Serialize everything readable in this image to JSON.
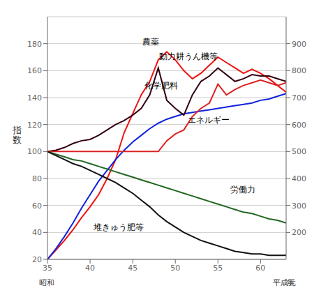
{
  "chart_data": {
    "type": "line",
    "x": [
      35,
      36,
      37,
      38,
      39,
      40,
      41,
      42,
      43,
      44,
      45,
      46,
      47,
      48,
      49,
      50,
      51,
      52,
      53,
      54,
      55,
      56,
      57,
      58,
      59,
      60,
      61,
      62,
      63
    ],
    "xlim": [
      35,
      63
    ],
    "xticks": [
      35,
      40,
      45,
      50,
      55,
      60
    ],
    "ylim": [
      20,
      200
    ],
    "yticks": [
      20,
      40,
      60,
      80,
      100,
      120,
      140,
      160,
      180
    ],
    "y2lim": [
      100,
      1000
    ],
    "y2ticks": [
      200,
      300,
      400,
      500,
      600,
      700,
      800,
      900
    ],
    "y_label": "指\n数",
    "grid": true,
    "series": [
      {
        "name": "農薬",
        "color": "#ee1111",
        "axis": "y2",
        "values": [
          100,
          135,
          170,
          210,
          255,
          295,
          340,
          400,
          470,
          570,
          640,
          710,
          760,
          840,
          870,
          840,
          800,
          770,
          790,
          820,
          850,
          830,
          810,
          790,
          805,
          790,
          770,
          745,
          720
        ]
      },
      {
        "name": "動力耕うん機等",
        "color": "#1122dd",
        "axis": "y2",
        "values": [
          100,
          140,
          185,
          235,
          290,
          340,
          390,
          430,
          470,
          505,
          535,
          560,
          585,
          605,
          620,
          630,
          640,
          645,
          650,
          655,
          660,
          665,
          670,
          675,
          680,
          690,
          695,
          705,
          715
        ]
      },
      {
        "name": "化学肥料",
        "color": "#330011",
        "axis": "y",
        "values": [
          100,
          101,
          103,
          106,
          108,
          109,
          112,
          116,
          120,
          123,
          127,
          132,
          142,
          162,
          138,
          132,
          127,
          142,
          152,
          156,
          162,
          157,
          152,
          154,
          157,
          156,
          156,
          154,
          152
        ]
      },
      {
        "name": "エネルギー",
        "color": "#dd2222",
        "axis": "y",
        "values": [
          100,
          100,
          100,
          100,
          100,
          100,
          100,
          100,
          100,
          100,
          100,
          100,
          100,
          100,
          108,
          113,
          116,
          126,
          132,
          136,
          150,
          142,
          146,
          149,
          151,
          153,
          151,
          149,
          151
        ]
      },
      {
        "name": "労働力",
        "color": "#226622",
        "axis": "y",
        "values": [
          100,
          98,
          96,
          94,
          93,
          91,
          89,
          87,
          85,
          83,
          81,
          79,
          77,
          75,
          73,
          71,
          69,
          67,
          65,
          63,
          61,
          59,
          57,
          55,
          54,
          52,
          50,
          49,
          47
        ]
      },
      {
        "name": "堆きゅう肥等",
        "color": "#111111",
        "axis": "y",
        "values": [
          100,
          97,
          94,
          91,
          89,
          86,
          83,
          80,
          77,
          73,
          69,
          64,
          59,
          53,
          48,
          44,
          40,
          37,
          34,
          32,
          30,
          28,
          26,
          25,
          24,
          24,
          23,
          23,
          23
        ]
      }
    ],
    "annotations": [
      {
        "text": "農薬",
        "x": 46.2,
        "y": 178
      },
      {
        "text": "動力耕うん機等",
        "x": 48.2,
        "y": 167
      },
      {
        "text": "化学肥料",
        "x": 46.5,
        "y": 145
      },
      {
        "text": "エネルギー",
        "x": 51.5,
        "y": 120
      },
      {
        "text": "労働力",
        "x": 56.5,
        "y": 68
      },
      {
        "text": "堆きゅう肥等",
        "x": 40.5,
        "y": 40
      },
      {
        "text": "昭和",
        "x": 35
      },
      {
        "text": "平成元",
        "x": 61.5
      },
      {
        "text": "年",
        "x": 63.2
      }
    ]
  }
}
